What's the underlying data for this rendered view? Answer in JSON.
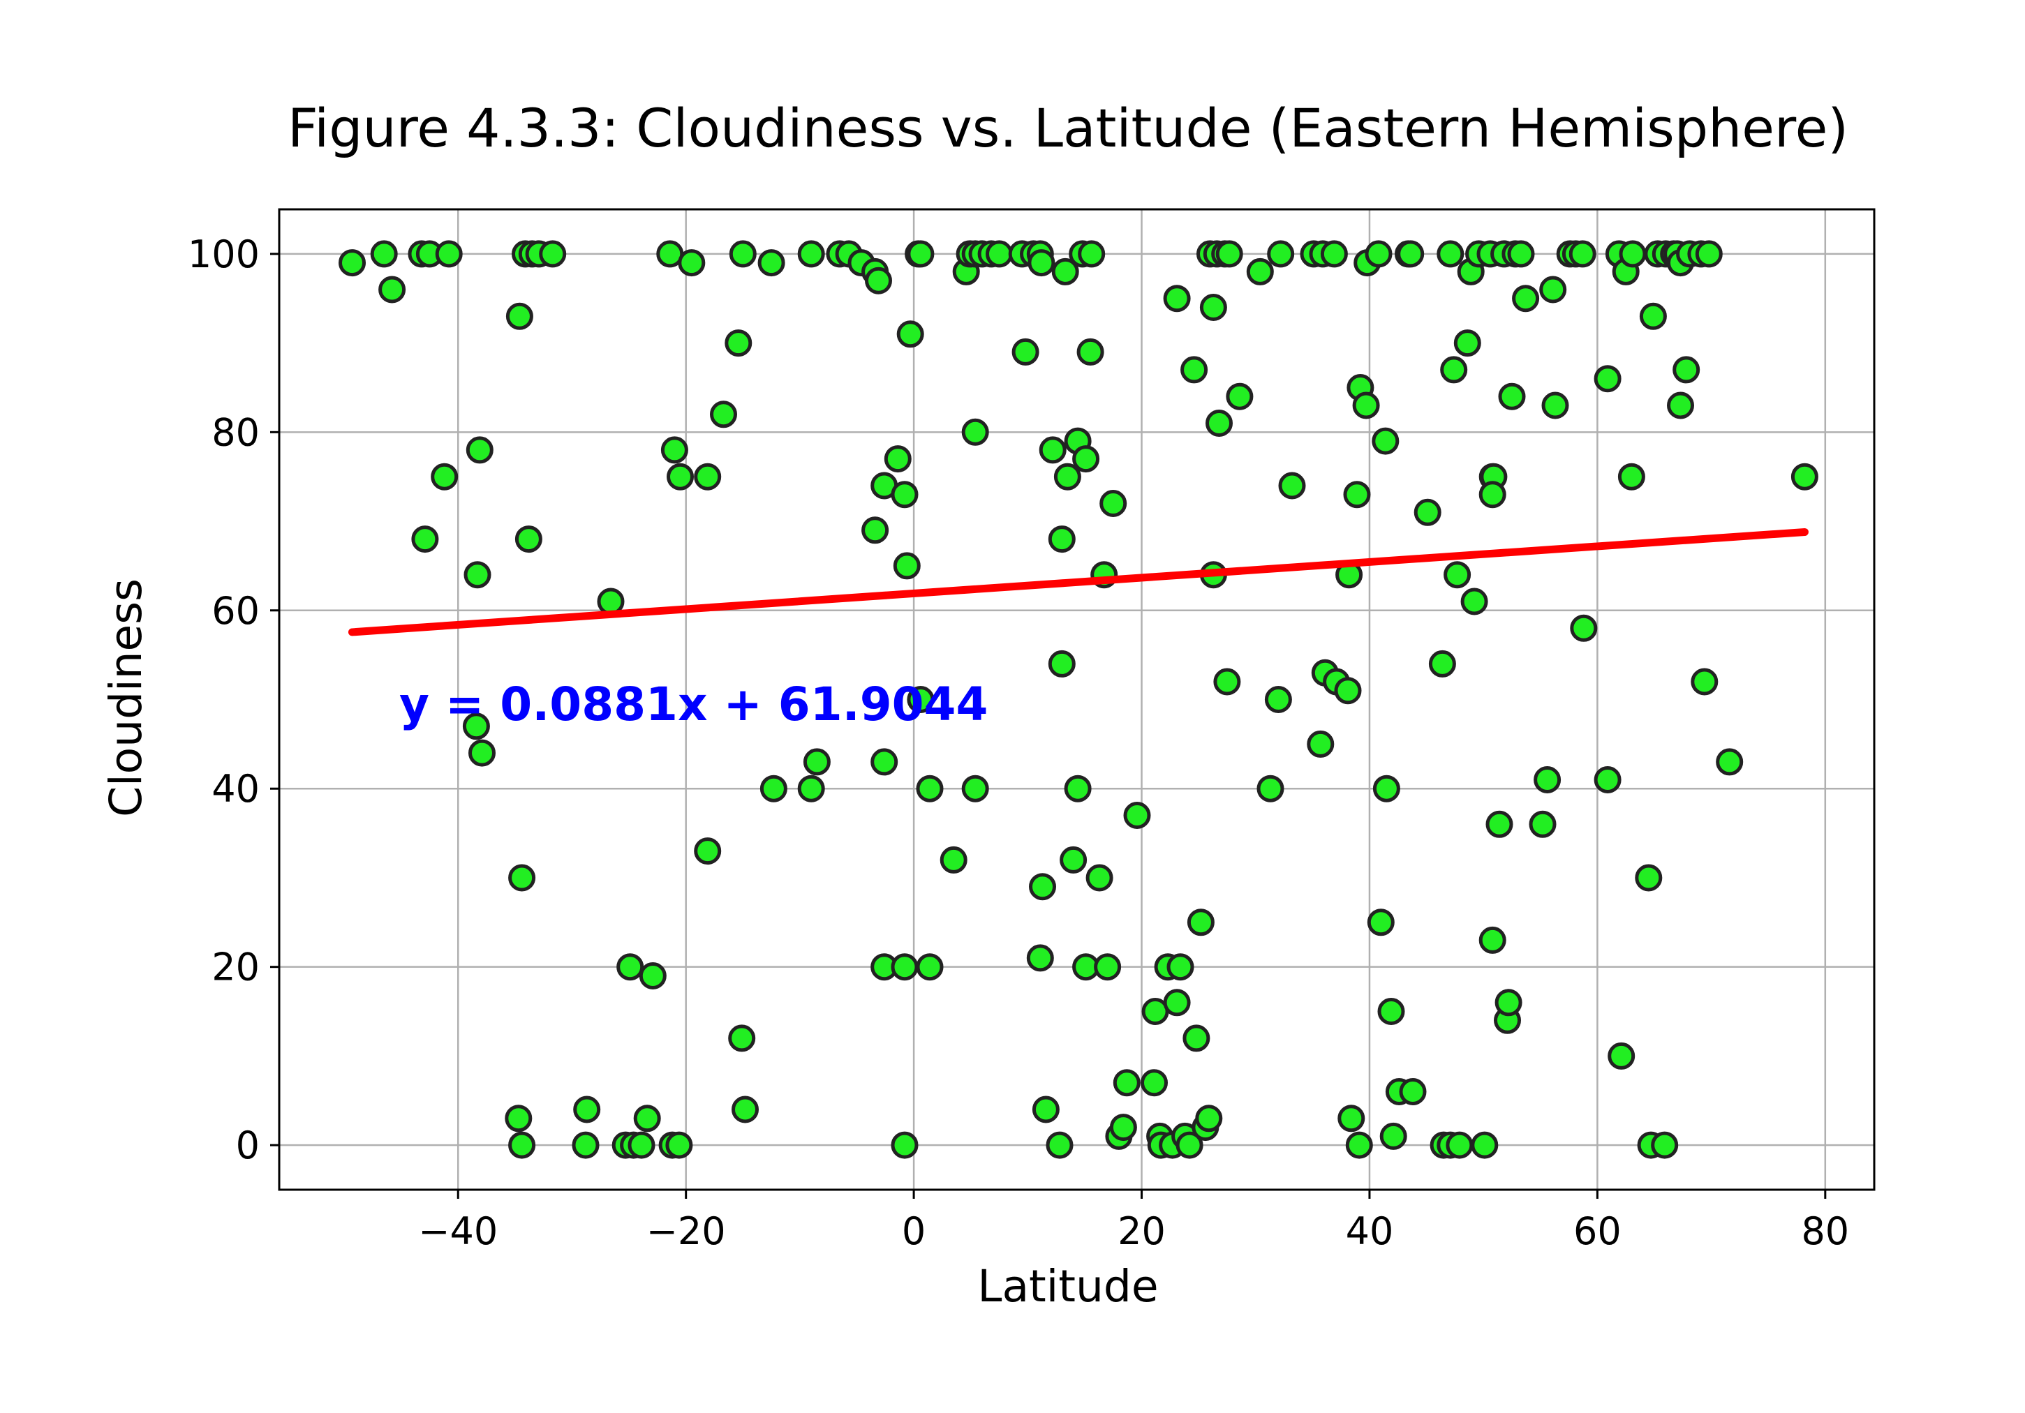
{
  "chart_data": {
    "type": "scatter",
    "title": "Figure 4.3.3: Cloudiness vs. Latitude (Eastern Hemisphere)",
    "xlabel": "Latitude",
    "ylabel": "Cloudiness",
    "xlim": [
      -55.7,
      84.3
    ],
    "ylim": [
      -5,
      105
    ],
    "xticks": [
      -40,
      -20,
      0,
      20,
      40,
      60,
      80
    ],
    "xtick_labels": [
      "−40",
      "−20",
      "0",
      "20",
      "40",
      "60",
      "80"
    ],
    "yticks": [
      0,
      20,
      40,
      60,
      80,
      100
    ],
    "ytick_labels": [
      "0",
      "20",
      "40",
      "60",
      "80",
      "100"
    ],
    "grid": true,
    "marker_color": "#22ee22",
    "marker_edge_color": "#222222",
    "series": [
      {
        "points": [
          [
            -49.3,
            99
          ],
          [
            -46.5,
            100
          ],
          [
            -45.8,
            96
          ],
          [
            -43.2,
            100
          ],
          [
            -42.5,
            100
          ],
          [
            -40.8,
            100
          ],
          [
            -41.2,
            75
          ],
          [
            -42.9,
            68
          ],
          [
            -38.1,
            78
          ],
          [
            -38.3,
            64
          ],
          [
            -38.4,
            47
          ],
          [
            -37.9,
            44
          ],
          [
            -34.6,
            93
          ],
          [
            -34.1,
            100
          ],
          [
            -33.5,
            100
          ],
          [
            -32.9,
            100
          ],
          [
            -31.7,
            100
          ],
          [
            -33.8,
            68
          ],
          [
            -34.4,
            30
          ],
          [
            -34.7,
            3
          ],
          [
            -34.4,
            0
          ],
          [
            -28.7,
            4
          ],
          [
            -28.8,
            0
          ],
          [
            -26.6,
            61
          ],
          [
            -25.3,
            0
          ],
          [
            -24.9,
            20
          ],
          [
            -24.6,
            0
          ],
          [
            -23.9,
            0
          ],
          [
            -23.4,
            3
          ],
          [
            -22.9,
            19
          ],
          [
            -21.2,
            0
          ],
          [
            -20.6,
            0
          ],
          [
            -21.4,
            100
          ],
          [
            -19.5,
            99
          ],
          [
            -21.0,
            78
          ],
          [
            -20.5,
            75
          ],
          [
            -18.1,
            75
          ],
          [
            -18.1,
            33
          ],
          [
            -16.7,
            82
          ],
          [
            -15.4,
            90
          ],
          [
            -15.0,
            100
          ],
          [
            -15.1,
            12
          ],
          [
            -14.8,
            4
          ],
          [
            -12.5,
            99
          ],
          [
            -12.3,
            40
          ],
          [
            -9.0,
            40
          ],
          [
            -9.0,
            100
          ],
          [
            -8.5,
            43
          ],
          [
            -6.5,
            100
          ],
          [
            -5.7,
            100
          ],
          [
            -4.6,
            99
          ],
          [
            -3.4,
            98
          ],
          [
            -3.1,
            97
          ],
          [
            -3.4,
            69
          ],
          [
            -2.6,
            74
          ],
          [
            -2.6,
            43
          ],
          [
            -2.6,
            20
          ],
          [
            -1.4,
            77
          ],
          [
            -0.8,
            73
          ],
          [
            -0.6,
            65
          ],
          [
            -0.3,
            91
          ],
          [
            -0.8,
            20
          ],
          [
            -0.8,
            0
          ],
          [
            0.4,
            100
          ],
          [
            0.6,
            100
          ],
          [
            0.6,
            50
          ],
          [
            1.4,
            40
          ],
          [
            1.4,
            20
          ],
          [
            3.5,
            32
          ],
          [
            4.6,
            98
          ],
          [
            4.9,
            100
          ],
          [
            5.4,
            80
          ],
          [
            5.4,
            100
          ],
          [
            5.4,
            40
          ],
          [
            6.0,
            100
          ],
          [
            6.8,
            100
          ],
          [
            7.5,
            100
          ],
          [
            9.5,
            100
          ],
          [
            9.8,
            89
          ],
          [
            10.5,
            100
          ],
          [
            11.1,
            100
          ],
          [
            11.2,
            99
          ],
          [
            11.1,
            21
          ],
          [
            11.3,
            29
          ],
          [
            11.6,
            4
          ],
          [
            12.2,
            78
          ],
          [
            12.8,
            0
          ],
          [
            13.0,
            68
          ],
          [
            13.0,
            54
          ],
          [
            13.3,
            98
          ],
          [
            13.5,
            75
          ],
          [
            14.0,
            32
          ],
          [
            14.4,
            79
          ],
          [
            14.4,
            40
          ],
          [
            14.8,
            100
          ],
          [
            15.1,
            77
          ],
          [
            15.1,
            20
          ],
          [
            15.5,
            89
          ],
          [
            15.6,
            100
          ],
          [
            16.3,
            30
          ],
          [
            16.7,
            64
          ],
          [
            17.0,
            20
          ],
          [
            17.5,
            72
          ],
          [
            18.0,
            1
          ],
          [
            18.4,
            2
          ],
          [
            18.7,
            7
          ],
          [
            19.6,
            37
          ],
          [
            21.1,
            7
          ],
          [
            21.2,
            15
          ],
          [
            21.6,
            1
          ],
          [
            21.7,
            0
          ],
          [
            22.3,
            20
          ],
          [
            22.7,
            0
          ],
          [
            23.1,
            16
          ],
          [
            23.1,
            95
          ],
          [
            23.4,
            20
          ],
          [
            23.8,
            1
          ],
          [
            24.2,
            0
          ],
          [
            24.6,
            87
          ],
          [
            24.8,
            12
          ],
          [
            25.2,
            25
          ],
          [
            25.6,
            2
          ],
          [
            25.9,
            3
          ],
          [
            26.0,
            100
          ],
          [
            26.3,
            64
          ],
          [
            26.3,
            94
          ],
          [
            26.6,
            100
          ],
          [
            26.8,
            81
          ],
          [
            27.3,
            100
          ],
          [
            27.5,
            52
          ],
          [
            27.7,
            100
          ],
          [
            28.6,
            84
          ],
          [
            30.4,
            98
          ],
          [
            31.3,
            40
          ],
          [
            32.0,
            50
          ],
          [
            32.2,
            100
          ],
          [
            33.2,
            74
          ],
          [
            35.1,
            100
          ],
          [
            35.7,
            45
          ],
          [
            35.9,
            100
          ],
          [
            36.1,
            53
          ],
          [
            36.9,
            100
          ],
          [
            37.1,
            52
          ],
          [
            38.1,
            51
          ],
          [
            38.2,
            64
          ],
          [
            38.4,
            3
          ],
          [
            38.9,
            73
          ],
          [
            39.1,
            0
          ],
          [
            39.2,
            85
          ],
          [
            39.7,
            83
          ],
          [
            39.8,
            99
          ],
          [
            40.8,
            100
          ],
          [
            41.0,
            25
          ],
          [
            41.4,
            79
          ],
          [
            41.5,
            40
          ],
          [
            41.9,
            15
          ],
          [
            42.1,
            1
          ],
          [
            42.6,
            6
          ],
          [
            43.4,
            100
          ],
          [
            43.6,
            100
          ],
          [
            43.8,
            6
          ],
          [
            45.1,
            71
          ],
          [
            46.4,
            54
          ],
          [
            46.5,
            0
          ],
          [
            47.1,
            0
          ],
          [
            47.1,
            100
          ],
          [
            47.4,
            87
          ],
          [
            47.7,
            64
          ],
          [
            47.9,
            0
          ],
          [
            48.6,
            90
          ],
          [
            48.9,
            98
          ],
          [
            49.2,
            61
          ],
          [
            49.6,
            100
          ],
          [
            50.1,
            0
          ],
          [
            50.6,
            100
          ],
          [
            50.8,
            75
          ],
          [
            50.9,
            75
          ],
          [
            50.8,
            73
          ],
          [
            50.8,
            23
          ],
          [
            51.4,
            36
          ],
          [
            51.8,
            100
          ],
          [
            52.1,
            14
          ],
          [
            52.2,
            16
          ],
          [
            52.5,
            84
          ],
          [
            52.8,
            100
          ],
          [
            53.3,
            100
          ],
          [
            53.7,
            95
          ],
          [
            55.2,
            36
          ],
          [
            55.6,
            41
          ],
          [
            56.1,
            96
          ],
          [
            56.3,
            83
          ],
          [
            57.6,
            100
          ],
          [
            58.1,
            100
          ],
          [
            58.7,
            100
          ],
          [
            58.8,
            58
          ],
          [
            60.9,
            86
          ],
          [
            60.9,
            41
          ],
          [
            61.9,
            100
          ],
          [
            62.1,
            10
          ],
          [
            62.5,
            98
          ],
          [
            63.0,
            75
          ],
          [
            63.1,
            100
          ],
          [
            64.5,
            30
          ],
          [
            64.7,
            0
          ],
          [
            64.9,
            93
          ],
          [
            65.3,
            100
          ],
          [
            65.9,
            0
          ],
          [
            66.0,
            100
          ],
          [
            66.7,
            100
          ],
          [
            67.0,
            100
          ],
          [
            67.3,
            83
          ],
          [
            67.3,
            99
          ],
          [
            67.8,
            87
          ],
          [
            68.1,
            100
          ],
          [
            69.1,
            100
          ],
          [
            69.4,
            52
          ],
          [
            69.8,
            100
          ],
          [
            71.6,
            43
          ],
          [
            78.2,
            75
          ]
        ]
      }
    ],
    "regression": {
      "equation": "y = 0.0881x + 61.9044",
      "slope": 0.0881,
      "intercept": 61.9044,
      "x_range": [
        -49.3,
        78.2
      ],
      "line_color": "#ff0000",
      "text_color": "#0000ff"
    }
  }
}
